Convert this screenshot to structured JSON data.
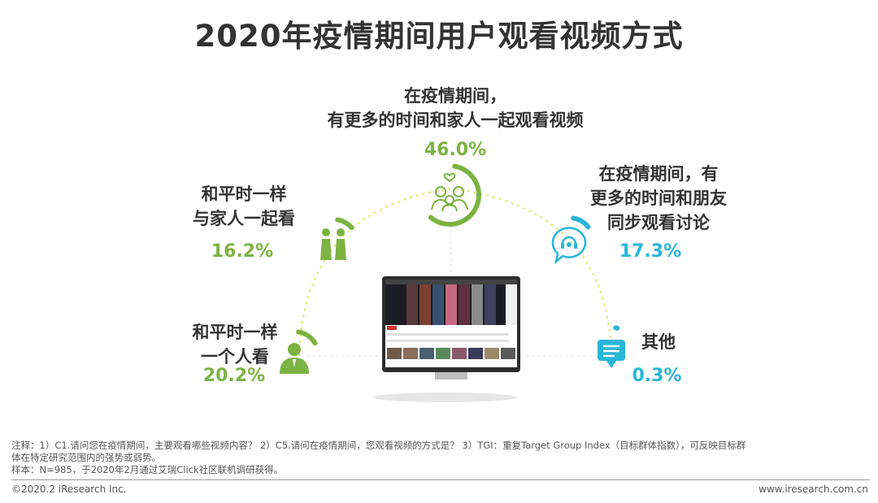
{
  "title": "2020年疫情期间用户观看视频方式",
  "chart_data": {
    "type": "pie",
    "title": "2020年疫情期间用户观看视频方式",
    "categories": [
      "和平时一样一个人看",
      "和平时一样与家人一起看",
      "在疫情期间，有更多的时间和家人一起观看视频",
      "在疫情期间，有更多的时间和朋友同步观看讨论",
      "其他"
    ],
    "values": [
      20.2,
      16.2,
      46.0,
      17.3,
      0.3
    ],
    "unit": "%"
  },
  "items": [
    {
      "label_lines": [
        "和平时一样",
        "一个人看"
      ],
      "value_text": "20.2%",
      "icon": "person-icon",
      "color": "#7cb342"
    },
    {
      "label_lines": [
        "和平时一样",
        "与家人一起看"
      ],
      "value_text": "16.2%",
      "icon": "couple-icon",
      "color": "#7cb342"
    },
    {
      "label_lines": [
        "在疫情期间，",
        "有更多的时间和家人一起观看视频"
      ],
      "value_text": "46.0%",
      "icon": "family-icon",
      "color": "#7cb342"
    },
    {
      "label_lines": [
        "在疫情期间，有",
        "更多的时间和朋友",
        "同步观看讨论"
      ],
      "value_text": "17.3%",
      "icon": "chat-bubble-icon",
      "color": "#29b6d8"
    },
    {
      "label_lines": [
        "其他"
      ],
      "value_text": "0.3%",
      "icon": "message-icon",
      "color": "#29b6d8"
    }
  ],
  "notes": {
    "line1": "注释：1）C1.请问您在疫情期间，主要观看哪些视频内容？ 2）C5.请问在疫情期间，您观看视频的方式是？ 3）TGI：重复Target Group Index（目标群体指数），可反映目标群",
    "line2": "体在特定研究范围内的强势或弱势。",
    "line3": "样本：N=985，于2020年2月通过艾瑞Click社区联机调研获得。"
  },
  "footer": {
    "copyright": "©2020.2 iResearch Inc.",
    "website": "www.iresearch.com.cn"
  }
}
